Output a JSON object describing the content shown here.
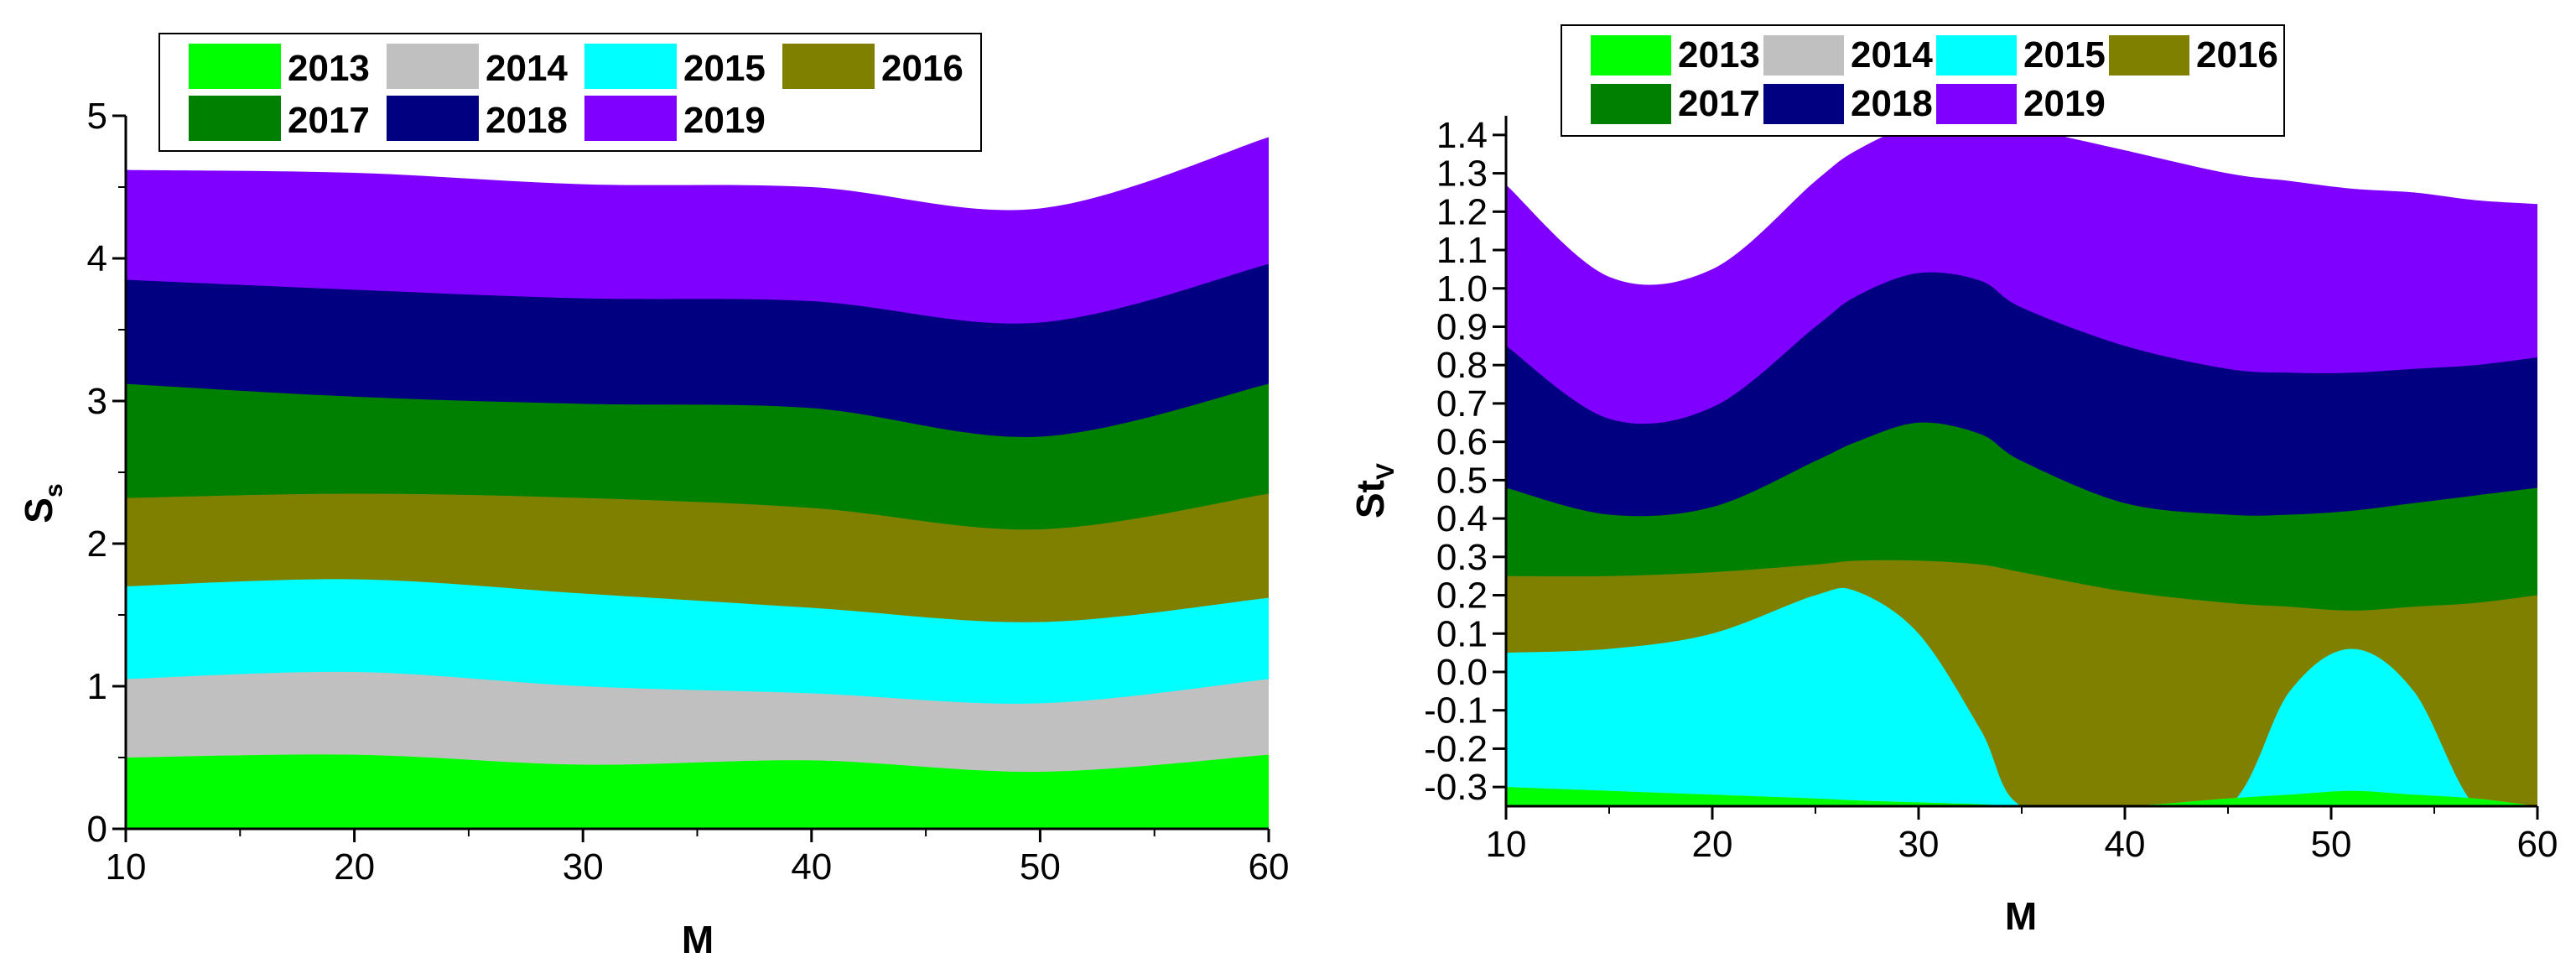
{
  "colors": {
    "2013": "#00ff00",
    "2014": "#c0c0c0",
    "2015": "#00ffff",
    "2016": "#808000",
    "2017": "#008000",
    "2018": "#000080",
    "2019": "#8000ff"
  },
  "chart_data": [
    {
      "type": "area",
      "subtype": "stacked",
      "xlabel": "M",
      "ylabel_main": "S",
      "ylabel_sub": "s",
      "xlim": [
        10,
        60
      ],
      "ylim": [
        0,
        5
      ],
      "xticks": [
        10,
        20,
        30,
        40,
        50,
        60
      ],
      "yticks": [
        0,
        1,
        2,
        3,
        4,
        5
      ],
      "y_tick_labels": [
        "0",
        "1",
        "2",
        "3",
        "4",
        "5"
      ],
      "legend_position": "top-left",
      "x": [
        10,
        20,
        30,
        40,
        50,
        60
      ],
      "series": [
        {
          "name": "2013",
          "boundary": [
            0.5,
            0.52,
            0.45,
            0.48,
            0.4,
            0.52
          ]
        },
        {
          "name": "2014",
          "boundary": [
            1.05,
            1.1,
            1.0,
            0.95,
            0.88,
            1.05
          ]
        },
        {
          "name": "2015",
          "boundary": [
            1.7,
            1.75,
            1.65,
            1.55,
            1.45,
            1.62
          ]
        },
        {
          "name": "2016",
          "boundary": [
            2.32,
            2.35,
            2.32,
            2.25,
            2.1,
            2.35
          ]
        },
        {
          "name": "2017",
          "boundary": [
            3.12,
            3.03,
            2.98,
            2.95,
            2.75,
            3.12
          ]
        },
        {
          "name": "2018",
          "boundary": [
            3.85,
            3.78,
            3.72,
            3.7,
            3.55,
            3.96
          ]
        },
        {
          "name": "2019",
          "boundary": [
            4.62,
            4.6,
            4.52,
            4.5,
            4.35,
            4.85
          ]
        }
      ]
    },
    {
      "type": "area",
      "subtype": "stacked",
      "xlabel": "M",
      "ylabel_main": "St",
      "ylabel_sub": "V",
      "xlim": [
        10,
        60
      ],
      "ylim": [
        -0.35,
        1.45
      ],
      "xticks": [
        10,
        20,
        30,
        40,
        50,
        60
      ],
      "yticks": [
        -0.3,
        -0.2,
        -0.1,
        0.0,
        0.1,
        0.2,
        0.3,
        0.4,
        0.5,
        0.6,
        0.7,
        0.8,
        0.9,
        1.0,
        1.1,
        1.2,
        1.3,
        1.4
      ],
      "y_tick_labels": [
        "-0.3",
        "-0.2",
        "-0.1",
        "0.0",
        "0.1",
        "0.2",
        "0.3",
        "0.4",
        "0.5",
        "0.6",
        "0.7",
        "0.8",
        "0.9",
        "1.0",
        "1.1",
        "1.2",
        "1.3",
        "1.4"
      ],
      "legend_position": "top-left",
      "x": [
        10,
        15,
        20,
        25,
        27,
        30,
        33,
        35,
        40,
        45,
        48,
        51,
        54,
        57,
        60
      ],
      "series": [
        {
          "name": "2013",
          "boundary": [
            -0.3,
            -0.31,
            -0.32,
            -0.33,
            -0.335,
            -0.34,
            -0.345,
            -0.35,
            -0.35,
            -0.33,
            -0.32,
            -0.31,
            -0.32,
            -0.33,
            -0.35
          ]
        },
        {
          "name": "2014",
          "boundary": [
            -0.3,
            -0.31,
            -0.32,
            -0.33,
            -0.335,
            -0.34,
            -0.345,
            -0.35,
            -0.35,
            -0.33,
            -0.32,
            -0.31,
            -0.32,
            -0.33,
            -0.35
          ]
        },
        {
          "name": "2015",
          "boundary": [
            0.05,
            0.06,
            0.1,
            0.2,
            0.21,
            0.1,
            -0.15,
            -0.35,
            -0.35,
            -0.35,
            -0.05,
            0.06,
            -0.05,
            -0.35,
            -0.35
          ]
        },
        {
          "name": "2016",
          "boundary": [
            0.25,
            0.25,
            0.26,
            0.28,
            0.29,
            0.29,
            0.28,
            0.26,
            0.21,
            0.18,
            0.17,
            0.16,
            0.17,
            0.18,
            0.2
          ]
        },
        {
          "name": "2017",
          "boundary": [
            0.48,
            0.41,
            0.43,
            0.55,
            0.6,
            0.65,
            0.62,
            0.55,
            0.44,
            0.41,
            0.41,
            0.42,
            0.44,
            0.46,
            0.48
          ]
        },
        {
          "name": "2018",
          "boundary": [
            0.85,
            0.66,
            0.69,
            0.9,
            0.98,
            1.04,
            1.02,
            0.95,
            0.85,
            0.79,
            0.78,
            0.78,
            0.79,
            0.8,
            0.82
          ]
        },
        {
          "name": "2019",
          "boundary": [
            1.27,
            1.03,
            1.05,
            1.28,
            1.36,
            1.43,
            1.44,
            1.42,
            1.36,
            1.3,
            1.28,
            1.26,
            1.25,
            1.23,
            1.22
          ]
        }
      ]
    }
  ]
}
